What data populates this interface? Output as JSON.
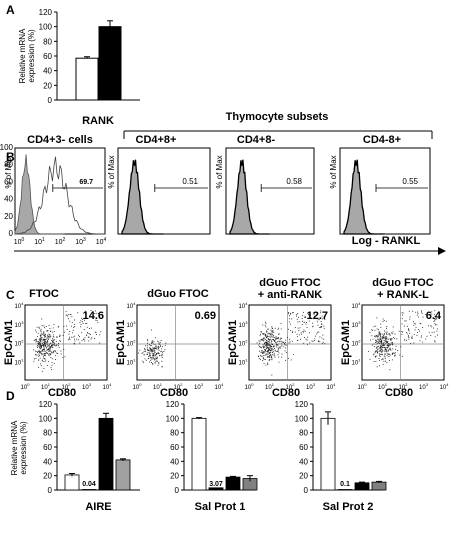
{
  "panel_labels": [
    "A",
    "B",
    "C",
    "D"
  ],
  "chart_data": [
    {
      "panel": "A",
      "type": "bar",
      "ylabel": "Relative mRNA expression (%)",
      "ylabel_lines": [
        "Relative mRNA",
        "expression (%)"
      ],
      "yticks": [
        0,
        20,
        40,
        60,
        80,
        100,
        120
      ],
      "ylim": [
        0,
        120
      ],
      "categories": [
        "RANK"
      ],
      "series": [
        {
          "color": "#ffffff",
          "values": [
            57
          ],
          "errors": [
            2
          ]
        },
        {
          "color": "#000000",
          "values": [
            100
          ],
          "errors": [
            8
          ]
        }
      ]
    },
    {
      "panel": "B",
      "type": "histogram",
      "group_title": "Thymocyte subsets",
      "ylabel": "% of Max",
      "xlabel": "Log - RANKL",
      "xticks_exp": [
        "0",
        "1",
        "2",
        "3",
        "4"
      ],
      "plots": [
        {
          "title": "CD4+3- cells",
          "value": "69.7"
        },
        {
          "title": "CD4+8+",
          "value": "0.51"
        },
        {
          "title": "CD4+8-",
          "value": "0.58"
        },
        {
          "title": "CD4-8+",
          "value": "0.55"
        }
      ]
    },
    {
      "panel": "C",
      "type": "scatter",
      "ylabel": "EpCAM1",
      "xlabel": "CD80",
      "ticks_exp": [
        "0",
        "1",
        "2",
        "3",
        "4"
      ],
      "plots": [
        {
          "title": "FTOC",
          "value": "14.6"
        },
        {
          "title": "dGuo FTOC",
          "value": "0.69"
        },
        {
          "title_lines": [
            "dGuo FTOC",
            "+ anti-RANK"
          ],
          "value": "12.7"
        },
        {
          "title_lines": [
            "dGuo FTOC",
            "+ RANK-L"
          ],
          "value": "6.4"
        }
      ]
    },
    {
      "panel": "D",
      "type": "bar",
      "ylabel_lines": [
        "Relative mRNA",
        "expression (%)"
      ],
      "yticks": [
        0,
        20,
        40,
        60,
        80,
        100,
        120
      ],
      "ylim": [
        0,
        120
      ],
      "series_colors": [
        "#ffffff",
        "#000000",
        "#555555",
        "#a0a0a0"
      ],
      "plots": [
        {
          "category": "AIRE",
          "values": [
            21,
            0.04,
            100,
            42
          ],
          "errors": [
            2,
            0,
            7,
            1.5
          ],
          "label": "0.04",
          "label_index": 1
        },
        {
          "category": "Sal Prot 1",
          "values": [
            100,
            3.07,
            18,
            16
          ],
          "errors": [
            1,
            0,
            1,
            4
          ],
          "label": "3.07",
          "label_index": 1
        },
        {
          "category": "Sal Prot 2",
          "values": [
            100,
            0.1,
            10,
            11
          ],
          "errors": [
            9,
            0,
            1,
            1
          ],
          "label": "0.1",
          "label_index": 1
        }
      ]
    }
  ]
}
